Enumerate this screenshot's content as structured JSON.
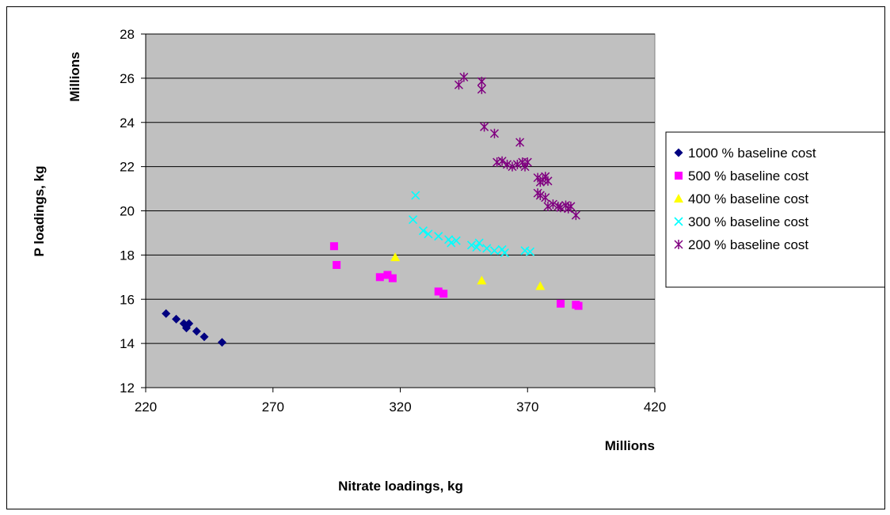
{
  "chart_data": {
    "type": "scatter",
    "xlabel": "Nitrate loadings, kg",
    "ylabel": "P loadings, kg",
    "x_unit_label": "Millions",
    "y_unit_label": "Millions",
    "xlim": [
      220,
      420
    ],
    "ylim": [
      12,
      28
    ],
    "x_ticks": [
      220,
      270,
      320,
      370,
      420
    ],
    "y_ticks": [
      12,
      14,
      16,
      18,
      20,
      22,
      24,
      26,
      28
    ],
    "grid": "horizontal",
    "legend_position": "right",
    "plot_background": "#c0c0c0",
    "series": [
      {
        "name": "1000 % baseline cost",
        "marker": "diamond",
        "color": "#000080",
        "points": [
          [
            228,
            15.35
          ],
          [
            232,
            15.1
          ],
          [
            235,
            14.9
          ],
          [
            236,
            14.7
          ],
          [
            237,
            14.9
          ],
          [
            240,
            14.55
          ],
          [
            243,
            14.3
          ],
          [
            250,
            14.05
          ]
        ]
      },
      {
        "name": "500 % baseline cost",
        "marker": "square",
        "color": "#ff00ff",
        "points": [
          [
            294,
            18.4
          ],
          [
            295,
            17.55
          ],
          [
            312,
            17.0
          ],
          [
            315,
            17.1
          ],
          [
            317,
            16.95
          ],
          [
            335,
            16.35
          ],
          [
            337,
            16.25
          ],
          [
            383,
            15.8
          ],
          [
            389,
            15.75
          ],
          [
            390,
            15.7
          ]
        ]
      },
      {
        "name": "400 % baseline cost",
        "marker": "triangle",
        "color": "#ffff00",
        "points": [
          [
            318,
            17.9
          ],
          [
            352,
            16.85
          ],
          [
            375,
            16.6
          ]
        ]
      },
      {
        "name": "300 % baseline cost",
        "marker": "x",
        "color": "#00ffff",
        "points": [
          [
            326,
            20.7
          ],
          [
            325,
            19.6
          ],
          [
            329,
            19.1
          ],
          [
            331,
            18.95
          ],
          [
            335,
            18.85
          ],
          [
            339,
            18.7
          ],
          [
            340,
            18.55
          ],
          [
            342,
            18.65
          ],
          [
            348,
            18.45
          ],
          [
            350,
            18.35
          ],
          [
            351,
            18.55
          ],
          [
            354,
            18.3
          ],
          [
            357,
            18.2
          ],
          [
            360,
            18.25
          ],
          [
            361,
            18.1
          ],
          [
            369,
            18.2
          ],
          [
            371,
            18.15
          ]
        ]
      },
      {
        "name": "200 % baseline cost",
        "marker": "star",
        "color": "#800080",
        "points": [
          [
            345,
            26.05
          ],
          [
            343,
            25.7
          ],
          [
            352,
            25.85
          ],
          [
            352,
            25.5
          ],
          [
            353,
            23.8
          ],
          [
            357,
            23.5
          ],
          [
            358,
            22.2
          ],
          [
            360,
            22.25
          ],
          [
            362,
            22.1
          ],
          [
            364,
            22.0
          ],
          [
            366,
            22.1
          ],
          [
            368,
            22.2
          ],
          [
            367,
            23.1
          ],
          [
            369,
            22.0
          ],
          [
            370,
            22.2
          ],
          [
            374,
            21.5
          ],
          [
            375,
            21.3
          ],
          [
            376,
            21.4
          ],
          [
            377,
            21.55
          ],
          [
            378,
            21.35
          ],
          [
            374,
            20.8
          ],
          [
            375,
            20.7
          ],
          [
            377,
            20.6
          ],
          [
            378,
            20.2
          ],
          [
            380,
            20.3
          ],
          [
            382,
            20.2
          ],
          [
            383,
            20.15
          ],
          [
            385,
            20.25
          ],
          [
            386,
            20.1
          ],
          [
            387,
            20.2
          ],
          [
            389,
            19.8
          ]
        ]
      }
    ]
  }
}
